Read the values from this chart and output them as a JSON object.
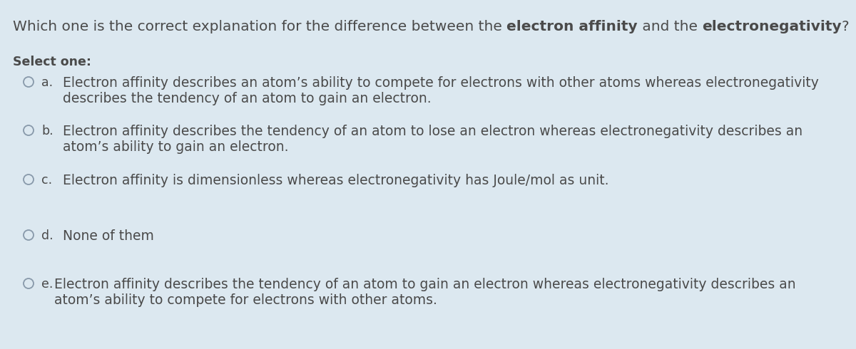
{
  "bg_color": "#dce8f0",
  "text_color": "#4a4a4a",
  "title_normal1": "Which one is the correct explanation for the difference between the ",
  "title_bold1": "electron affinity",
  "title_mid": " and the ",
  "title_bold2": "electronegativity",
  "title_end": "?",
  "select_one": "Select one:",
  "options": [
    {
      "label": "a.",
      "line1": "Electron affinity describes an atom’s ability to compete for electrons with other atoms whereas electronegativity",
      "line2": "describes the tendency of an atom to gain an electron."
    },
    {
      "label": "b.",
      "line1": "Electron affinity describes the tendency of an atom to lose an electron whereas electronegativity describes an",
      "line2": "atom’s ability to gain an electron."
    },
    {
      "label": "c.",
      "line1": "Electron affinity is dimensionless whereas electronegativity has Joule/mol as unit.",
      "line2": ""
    },
    {
      "label": "d.",
      "line1": "None of them",
      "line2": ""
    },
    {
      "label": "e.",
      "line1": "Electron affinity describes the tendency of an atom to gain an electron whereas electronegativity describes an",
      "line2": "atom’s ability to compete for electrons with other atoms."
    }
  ],
  "circle_color": "#8899aa",
  "font_size_title": 14.5,
  "font_size_select": 12.5,
  "font_size_label": 12.5,
  "font_size_options": 13.5
}
